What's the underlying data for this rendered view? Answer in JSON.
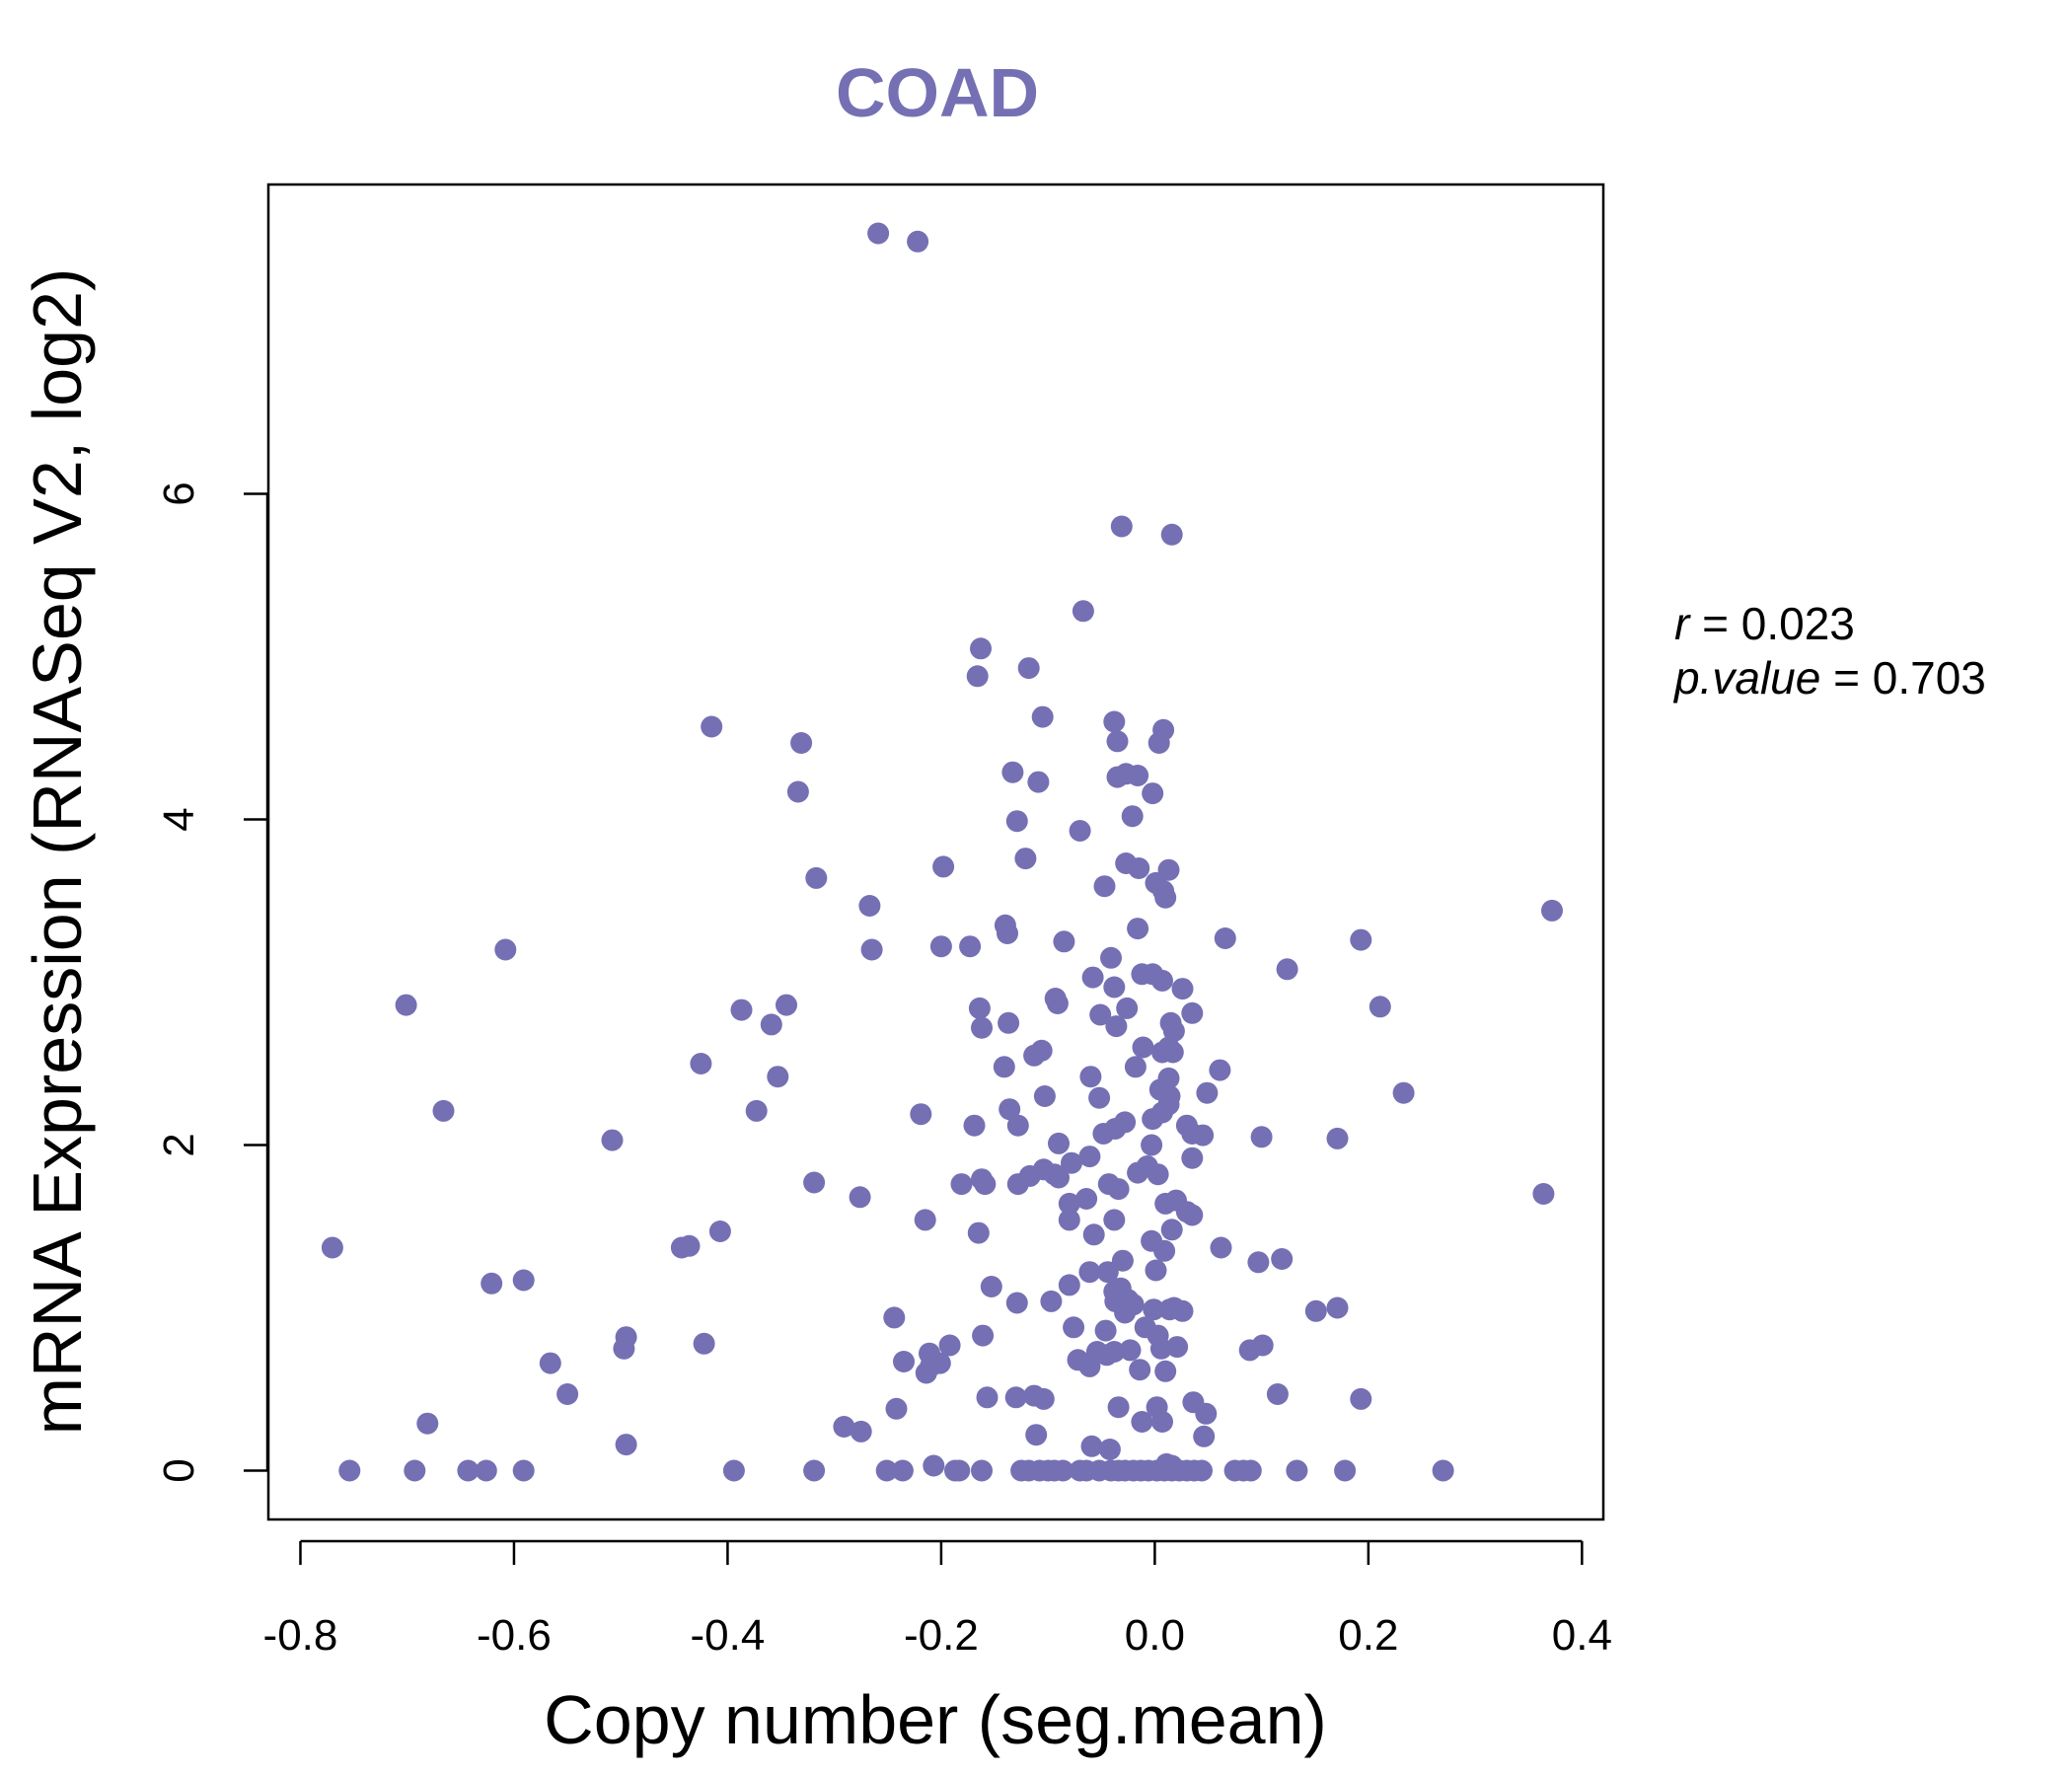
{
  "chart_data": {
    "type": "scatter",
    "title": "COAD",
    "xlabel": "Copy number (seg.mean)",
    "ylabel": "mRNA Expression (RNASeq V2, log2)",
    "xlim": [
      -0.83,
      0.42
    ],
    "ylim": [
      -0.3,
      7.9
    ],
    "x_ticks": [
      -0.8,
      -0.6,
      -0.4,
      -0.2,
      0.0,
      0.2,
      0.4
    ],
    "x_tick_labels": [
      "-0.8",
      "-0.6",
      "-0.4",
      "-0.2",
      "0.0",
      "0.2",
      "0.4"
    ],
    "y_ticks": [
      0,
      2,
      4,
      6
    ],
    "y_tick_labels": [
      "0",
      "2",
      "4",
      "6"
    ],
    "grid": false,
    "point_color": "#7570b3",
    "stats": {
      "r_label": "r",
      "r_value": "0.023",
      "p_label": "p.value",
      "p_value": "0.703"
    },
    "points": [
      [
        -0.259,
        7.6
      ],
      [
        -0.222,
        7.55
      ],
      [
        -0.031,
        5.8
      ],
      [
        0.016,
        5.75
      ],
      [
        -0.067,
        5.28
      ],
      [
        -0.163,
        5.05
      ],
      [
        -0.166,
        4.88
      ],
      [
        -0.118,
        4.93
      ],
      [
        -0.105,
        4.63
      ],
      [
        -0.415,
        4.57
      ],
      [
        -0.331,
        4.47
      ],
      [
        -0.334,
        4.17
      ],
      [
        -0.038,
        4.6
      ],
      [
        0.008,
        4.55
      ],
      [
        -0.035,
        4.48
      ],
      [
        0.004,
        4.47
      ],
      [
        -0.133,
        4.29
      ],
      [
        -0.109,
        4.23
      ],
      [
        -0.027,
        4.28
      ],
      [
        -0.035,
        4.26
      ],
      [
        -0.016,
        4.27
      ],
      [
        -0.002,
        4.16
      ],
      [
        -0.129,
        3.99
      ],
      [
        -0.021,
        4.02
      ],
      [
        -0.07,
        3.93
      ],
      [
        -0.121,
        3.76
      ],
      [
        -0.198,
        3.71
      ],
      [
        -0.027,
        3.73
      ],
      [
        -0.015,
        3.7
      ],
      [
        0.013,
        3.69
      ],
      [
        -0.317,
        3.64
      ],
      [
        -0.047,
        3.59
      ],
      [
        0.001,
        3.61
      ],
      [
        0.008,
        3.56
      ],
      [
        0.01,
        3.52
      ],
      [
        -0.267,
        3.47
      ],
      [
        0.372,
        3.44
      ],
      [
        -0.14,
        3.35
      ],
      [
        -0.138,
        3.3
      ],
      [
        -0.016,
        3.33
      ],
      [
        0.066,
        3.27
      ],
      [
        0.193,
        3.26
      ],
      [
        -0.608,
        3.2
      ],
      [
        -0.265,
        3.2
      ],
      [
        -0.2,
        3.22
      ],
      [
        -0.173,
        3.22
      ],
      [
        -0.085,
        3.25
      ],
      [
        -0.041,
        3.15
      ],
      [
        0.124,
        3.08
      ],
      [
        -0.012,
        3.05
      ],
      [
        -0.002,
        3.05
      ],
      [
        0.007,
        3.01
      ],
      [
        -0.058,
        3.03
      ],
      [
        -0.038,
        2.97
      ],
      [
        0.026,
        2.96
      ],
      [
        -0.701,
        2.86
      ],
      [
        -0.387,
        2.83
      ],
      [
        -0.345,
        2.86
      ],
      [
        -0.164,
        2.84
      ],
      [
        -0.091,
        2.87
      ],
      [
        -0.093,
        2.9
      ],
      [
        -0.026,
        2.84
      ],
      [
        0.035,
        2.81
      ],
      [
        0.211,
        2.85
      ],
      [
        -0.359,
        2.74
      ],
      [
        -0.162,
        2.72
      ],
      [
        -0.137,
        2.75
      ],
      [
        -0.051,
        2.8
      ],
      [
        -0.036,
        2.73
      ],
      [
        0.015,
        2.75
      ],
      [
        0.018,
        2.7
      ],
      [
        -0.011,
        2.6
      ],
      [
        0.013,
        2.6
      ],
      [
        0.007,
        2.57
      ],
      [
        0.017,
        2.57
      ],
      [
        -0.113,
        2.55
      ],
      [
        -0.106,
        2.58
      ],
      [
        -0.425,
        2.5
      ],
      [
        -0.141,
        2.48
      ],
      [
        -0.018,
        2.48
      ],
      [
        0.061,
        2.46
      ],
      [
        -0.353,
        2.42
      ],
      [
        -0.06,
        2.42
      ],
      [
        0.013,
        2.41
      ],
      [
        -0.666,
        2.21
      ],
      [
        -0.373,
        2.21
      ],
      [
        -0.219,
        2.19
      ],
      [
        -0.136,
        2.22
      ],
      [
        -0.103,
        2.3
      ],
      [
        -0.052,
        2.29
      ],
      [
        0.005,
        2.34
      ],
      [
        0.014,
        2.3
      ],
      [
        0.049,
        2.32
      ],
      [
        0.233,
        2.32
      ],
      [
        0.013,
        2.25
      ],
      [
        0.007,
        2.2
      ],
      [
        -0.508,
        2.03
      ],
      [
        -0.169,
        2.12
      ],
      [
        -0.128,
        2.12
      ],
      [
        -0.09,
        2.01
      ],
      [
        -0.048,
        2.07
      ],
      [
        -0.037,
        2.1
      ],
      [
        -0.028,
        2.14
      ],
      [
        -0.002,
        2.16
      ],
      [
        0.03,
        2.12
      ],
      [
        0.035,
        2.07
      ],
      [
        0.045,
        2.06
      ],
      [
        0.1,
        2.05
      ],
      [
        0.171,
        2.04
      ],
      [
        -0.003,
        2.0
      ],
      [
        -0.061,
        1.93
      ],
      [
        0.035,
        1.92
      ],
      [
        -0.078,
        1.89
      ],
      [
        -0.319,
        1.77
      ],
      [
        -0.181,
        1.76
      ],
      [
        -0.162,
        1.79
      ],
      [
        -0.159,
        1.76
      ],
      [
        -0.128,
        1.76
      ],
      [
        -0.117,
        1.81
      ],
      [
        -0.104,
        1.85
      ],
      [
        -0.094,
        1.82
      ],
      [
        -0.09,
        1.8
      ],
      [
        -0.043,
        1.76
      ],
      [
        -0.034,
        1.73
      ],
      [
        -0.016,
        1.83
      ],
      [
        -0.007,
        1.87
      ],
      [
        0.003,
        1.82
      ],
      [
        0.364,
        1.7
      ],
      [
        -0.276,
        1.68
      ],
      [
        -0.08,
        1.64
      ],
      [
        -0.064,
        1.67
      ],
      [
        0.01,
        1.64
      ],
      [
        0.02,
        1.66
      ],
      [
        0.03,
        1.59
      ],
      [
        0.035,
        1.57
      ],
      [
        -0.215,
        1.54
      ],
      [
        -0.08,
        1.54
      ],
      [
        -0.038,
        1.54
      ],
      [
        0.016,
        1.48
      ],
      [
        -0.77,
        1.37
      ],
      [
        -0.407,
        1.47
      ],
      [
        -0.443,
        1.37
      ],
      [
        -0.436,
        1.38
      ],
      [
        -0.165,
        1.46
      ],
      [
        -0.057,
        1.45
      ],
      [
        -0.003,
        1.41
      ],
      [
        0.009,
        1.35
      ],
      [
        0.062,
        1.37
      ],
      [
        -0.03,
        1.29
      ],
      [
        0.097,
        1.28
      ],
      [
        0.119,
        1.3
      ],
      [
        0.001,
        1.23
      ],
      [
        -0.044,
        1.22
      ],
      [
        -0.061,
        1.22
      ],
      [
        -0.621,
        1.15
      ],
      [
        -0.591,
        1.17
      ],
      [
        -0.153,
        1.13
      ],
      [
        -0.08,
        1.14
      ],
      [
        -0.038,
        1.1
      ],
      [
        -0.032,
        1.12
      ],
      [
        -0.129,
        1.03
      ],
      [
        -0.097,
        1.04
      ],
      [
        -0.037,
        1.04
      ],
      [
        -0.025,
        1.05
      ],
      [
        -0.02,
        1.02
      ],
      [
        -0.028,
        0.97
      ],
      [
        -0.001,
        0.99
      ],
      [
        0.014,
        0.99
      ],
      [
        0.018,
        1.0
      ],
      [
        0.026,
        0.98
      ],
      [
        0.151,
        0.98
      ],
      [
        0.171,
        1.0
      ],
      [
        -0.244,
        0.94
      ],
      [
        -0.076,
        0.88
      ],
      [
        -0.046,
        0.86
      ],
      [
        -0.009,
        0.88
      ],
      [
        0.003,
        0.83
      ],
      [
        -0.495,
        0.82
      ],
      [
        -0.497,
        0.75
      ],
      [
        -0.422,
        0.78
      ],
      [
        -0.161,
        0.83
      ],
      [
        -0.192,
        0.77
      ],
      [
        -0.211,
        0.72
      ],
      [
        -0.21,
        0.64
      ],
      [
        -0.235,
        0.67
      ],
      [
        -0.214,
        0.6
      ],
      [
        -0.201,
        0.66
      ],
      [
        -0.072,
        0.68
      ],
      [
        -0.054,
        0.73
      ],
      [
        -0.045,
        0.71
      ],
      [
        -0.038,
        0.73
      ],
      [
        -0.023,
        0.74
      ],
      [
        0.006,
        0.75
      ],
      [
        0.021,
        0.76
      ],
      [
        0.089,
        0.74
      ],
      [
        0.101,
        0.77
      ],
      [
        -0.566,
        0.66
      ],
      [
        -0.061,
        0.64
      ],
      [
        -0.014,
        0.62
      ],
      [
        0.01,
        0.61
      ],
      [
        -0.55,
        0.47
      ],
      [
        -0.157,
        0.45
      ],
      [
        -0.13,
        0.45
      ],
      [
        -0.113,
        0.46
      ],
      [
        -0.104,
        0.44
      ],
      [
        -0.034,
        0.39
      ],
      [
        0.002,
        0.39
      ],
      [
        0.036,
        0.42
      ],
      [
        0.048,
        0.35
      ],
      [
        0.115,
        0.47
      ],
      [
        0.193,
        0.44
      ],
      [
        -0.242,
        0.38
      ],
      [
        -0.012,
        0.3
      ],
      [
        0.007,
        0.3
      ],
      [
        0.046,
        0.21
      ],
      [
        -0.681,
        0.29
      ],
      [
        -0.291,
        0.27
      ],
      [
        -0.275,
        0.24
      ],
      [
        -0.495,
        0.16
      ],
      [
        -0.111,
        0.22
      ],
      [
        -0.059,
        0.15
      ],
      [
        -0.042,
        0.13
      ],
      [
        -0.207,
        0.03
      ],
      [
        -0.183,
        0.0
      ],
      [
        -0.187,
        0.0
      ],
      [
        0.011,
        0.04
      ],
      [
        0.016,
        0.03
      ],
      [
        -0.754,
        0.0
      ],
      [
        -0.693,
        0.0
      ],
      [
        -0.643,
        0.0
      ],
      [
        -0.626,
        0.0
      ],
      [
        -0.591,
        0.0
      ],
      [
        -0.394,
        0.0
      ],
      [
        -0.319,
        0.0
      ],
      [
        -0.251,
        0.0
      ],
      [
        -0.236,
        0.0
      ],
      [
        -0.162,
        0.0
      ],
      [
        -0.125,
        0.0
      ],
      [
        -0.118,
        0.0
      ],
      [
        -0.108,
        0.0
      ],
      [
        -0.1,
        0.0
      ],
      [
        -0.094,
        0.0
      ],
      [
        -0.086,
        0.0
      ],
      [
        -0.07,
        0.0
      ],
      [
        -0.064,
        0.0
      ],
      [
        -0.052,
        0.0
      ],
      [
        -0.041,
        0.0
      ],
      [
        -0.034,
        0.0
      ],
      [
        -0.028,
        0.0
      ],
      [
        -0.02,
        0.0
      ],
      [
        -0.013,
        0.0
      ],
      [
        -0.006,
        0.0
      ],
      [
        0.002,
        0.0
      ],
      [
        0.009,
        0.0
      ],
      [
        0.016,
        0.0
      ],
      [
        0.023,
        0.0
      ],
      [
        0.03,
        0.0
      ],
      [
        0.037,
        0.0
      ],
      [
        0.044,
        0.0
      ],
      [
        0.075,
        0.0
      ],
      [
        0.083,
        0.0
      ],
      [
        0.09,
        0.0
      ],
      [
        0.133,
        0.0
      ],
      [
        0.178,
        0.0
      ],
      [
        0.27,
        0.0
      ]
    ]
  }
}
